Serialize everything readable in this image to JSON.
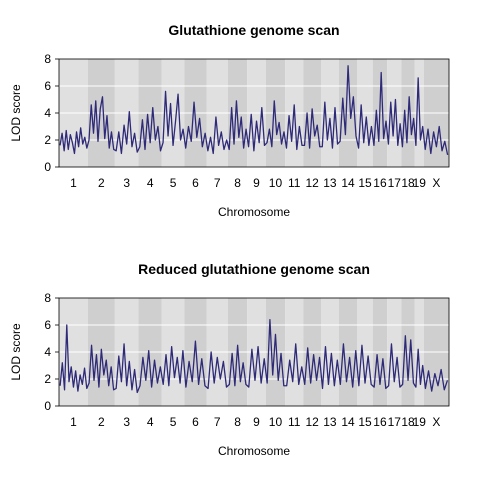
{
  "chart_data": [
    {
      "type": "line",
      "title": "Glutathione genome scan",
      "xlabel": "Chromosome",
      "ylabel": "LOD score",
      "ylim": [
        0,
        8
      ],
      "yticks": [
        0,
        2,
        4,
        6,
        8
      ],
      "grid": true,
      "legend": "none",
      "line_color": "#2e2a78",
      "band_colors": [
        "#e0e0e0",
        "#cfcfcf"
      ],
      "chromosomes": [
        "1",
        "2",
        "3",
        "4",
        "5",
        "6",
        "7",
        "8",
        "9",
        "10",
        "11",
        "12",
        "13",
        "14",
        "15",
        "16",
        "17",
        "18",
        "19",
        "X"
      ],
      "chromosome_widths": [
        1.95,
        1.82,
        1.6,
        1.57,
        1.52,
        1.5,
        1.45,
        1.3,
        1.25,
        1.31,
        1.22,
        1.2,
        1.2,
        1.25,
        1.04,
        0.98,
        0.95,
        0.91,
        0.61,
        1.7
      ],
      "series": [
        {
          "values": [
            [
              1.6,
              2.5,
              1.2,
              2.7,
              1.3,
              2.4,
              1.8,
              1.0,
              2.6,
              1.5,
              2.9,
              1.7,
              2.2,
              1.4
            ],
            [
              2.0,
              4.6,
              2.5,
              4.9,
              1.9,
              4.3,
              5.2,
              2.1,
              3.8,
              1.4,
              2.6,
              1.3
            ],
            [
              1.2,
              2.6,
              1.0,
              3.1,
              1.7,
              4.1,
              1.5,
              2.5,
              1.1
            ],
            [
              1.5,
              3.5,
              1.3,
              3.9,
              1.8,
              4.4,
              2.0,
              3.0,
              1.2
            ],
            [
              1.8,
              5.6,
              2.3,
              4.7,
              1.6,
              3.4,
              5.4,
              2.0,
              2.8
            ],
            [
              1.4,
              3.0,
              1.9,
              4.8,
              2.2,
              3.6,
              1.5,
              2.5
            ],
            [
              1.2,
              2.2,
              1.0,
              3.7,
              1.6,
              2.6,
              1.3,
              2.0
            ],
            [
              1.3,
              4.4,
              1.7,
              4.9,
              2.2,
              3.7,
              1.4,
              2.8
            ],
            [
              1.5,
              3.9,
              1.2,
              3.4,
              1.8,
              4.4,
              1.6
            ],
            [
              1.8,
              2.8,
              1.5,
              4.9,
              2.4,
              3.3,
              1.7,
              2.6
            ],
            [
              1.4,
              3.8,
              1.9,
              4.6,
              1.3,
              3.0,
              1.6
            ],
            [
              1.6,
              4.0,
              1.4,
              4.3,
              2.3,
              3.1,
              1.5
            ],
            [
              1.5,
              4.8,
              2.0,
              3.6,
              1.4,
              4.4,
              1.7
            ],
            [
              1.9,
              5.1,
              2.4,
              7.5,
              3.6,
              5.2,
              2.3
            ],
            [
              1.4,
              4.6,
              1.8,
              3.7,
              1.6,
              3.0
            ],
            [
              1.6,
              4.2,
              1.9,
              7.0,
              2.1,
              3.4
            ],
            [
              1.7,
              4.8,
              2.3,
              5.0,
              1.6,
              3.2
            ],
            [
              1.5,
              4.2,
              1.8,
              5.2,
              2.4,
              3.6
            ],
            [
              1.6,
              6.6,
              2.0,
              3.0
            ],
            [
              1.3,
              2.8,
              1.0,
              2.6,
              1.5,
              3.0,
              1.2,
              1.9,
              0.9
            ]
          ]
        }
      ]
    },
    {
      "type": "line",
      "title": "Reduced glutathione genome scan",
      "xlabel": "Chromosome",
      "ylabel": "LOD score",
      "ylim": [
        0,
        8
      ],
      "yticks": [
        0,
        2,
        4,
        6,
        8
      ],
      "grid": true,
      "legend": "none",
      "line_color": "#2e2a78",
      "band_colors": [
        "#e0e0e0",
        "#cfcfcf"
      ],
      "chromosomes": [
        "1",
        "2",
        "3",
        "4",
        "5",
        "6",
        "7",
        "8",
        "9",
        "10",
        "11",
        "12",
        "13",
        "14",
        "15",
        "16",
        "17",
        "18",
        "19",
        "X"
      ],
      "chromosome_widths": [
        1.95,
        1.82,
        1.6,
        1.57,
        1.52,
        1.5,
        1.45,
        1.3,
        1.25,
        1.31,
        1.22,
        1.2,
        1.2,
        1.25,
        1.04,
        0.98,
        0.95,
        0.91,
        0.61,
        1.7
      ],
      "series": [
        {
          "values": [
            [
              1.5,
              3.2,
              1.2,
              6.0,
              1.8,
              2.9,
              1.4,
              2.6,
              1.1,
              2.3,
              1.6,
              2.8,
              1.3
            ],
            [
              1.7,
              4.5,
              1.9,
              3.8,
              1.4,
              4.2,
              2.3,
              3.4,
              1.5,
              2.9,
              1.2
            ],
            [
              1.3,
              3.7,
              1.8,
              4.6,
              1.5,
              3.3,
              1.2,
              2.7,
              1.0
            ],
            [
              1.5,
              3.6,
              1.9,
              4.1,
              1.4,
              3.4,
              1.7,
              2.9
            ],
            [
              1.6,
              3.8,
              1.5,
              4.4,
              2.1,
              3.6,
              1.7,
              4.1
            ],
            [
              1.4,
              3.3,
              1.8,
              4.8,
              1.6,
              3.5,
              1.5
            ],
            [
              1.3,
              4.0,
              1.7,
              3.6,
              2.0,
              3.3,
              1.4
            ],
            [
              1.6,
              3.9,
              1.5,
              4.5,
              1.8,
              3.2,
              1.6
            ],
            [
              1.4,
              4.2,
              1.9,
              4.4,
              1.7,
              3.5
            ],
            [
              1.7,
              6.4,
              2.3,
              5.3,
              1.9,
              3.9,
              1.5
            ],
            [
              1.5,
              3.4,
              1.8,
              4.6,
              1.6,
              2.9
            ],
            [
              1.6,
              4.3,
              1.7,
              3.8,
              1.9,
              3.6
            ],
            [
              1.3,
              4.4,
              1.6,
              3.9,
              1.5,
              3.4
            ],
            [
              1.6,
              4.6,
              1.8,
              3.6,
              1.4,
              4.1
            ],
            [
              1.5,
              4.5,
              1.7,
              3.7,
              1.6
            ],
            [
              1.4,
              3.8,
              1.6,
              3.5,
              1.3
            ],
            [
              1.5,
              4.6,
              1.8,
              3.6,
              1.4
            ],
            [
              1.6,
              5.2,
              1.9,
              4.9,
              1.7
            ],
            [
              1.4,
              4.2,
              1.6,
              3.0
            ],
            [
              1.3,
              2.6,
              1.1,
              2.4,
              1.5,
              2.7,
              1.2,
              1.9
            ]
          ]
        }
      ]
    }
  ]
}
